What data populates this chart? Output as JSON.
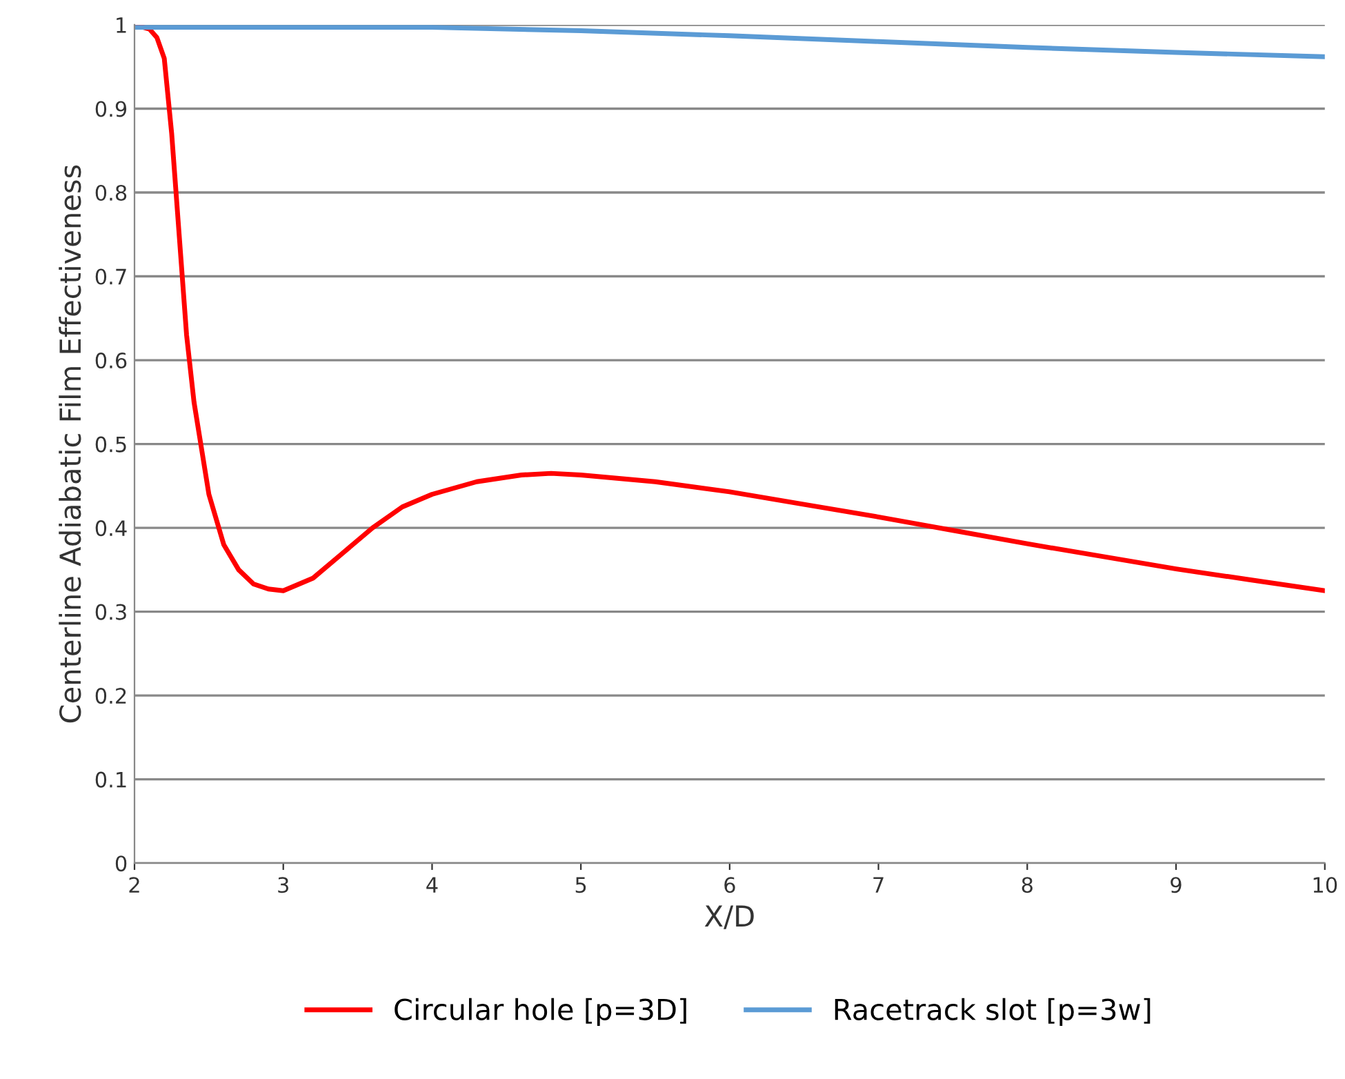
{
  "chart_data": {
    "type": "line",
    "xlabel": "X/D",
    "ylabel": "Centerline Adiabatic Film Effectiveness",
    "xlim": [
      2,
      10
    ],
    "ylim": [
      0,
      1
    ],
    "xticks": [
      2,
      3,
      4,
      5,
      6,
      7,
      8,
      9,
      10
    ],
    "yticks": [
      0,
      0.1,
      0.2,
      0.3,
      0.4,
      0.5,
      0.6,
      0.7,
      0.8,
      0.9,
      1
    ],
    "grid": "y",
    "legend": "bottom",
    "marker": "none",
    "line_style": "solid",
    "series": [
      {
        "name": "Circular hole [p=3D]",
        "color": "#ff0000",
        "x": [
          2,
          2.1,
          2.15,
          2.2,
          2.25,
          2.3,
          2.35,
          2.4,
          2.5,
          2.6,
          2.7,
          2.8,
          2.9,
          3.0,
          3.2,
          3.4,
          3.6,
          3.8,
          4.0,
          4.3,
          4.6,
          4.8,
          5.0,
          5.5,
          6,
          6.5,
          7,
          7.5,
          8,
          8.5,
          9,
          9.5,
          10
        ],
        "values": [
          1,
          0.995,
          0.985,
          0.96,
          0.87,
          0.75,
          0.63,
          0.55,
          0.44,
          0.38,
          0.35,
          0.333,
          0.327,
          0.325,
          0.34,
          0.37,
          0.4,
          0.425,
          0.44,
          0.455,
          0.463,
          0.465,
          0.463,
          0.455,
          0.443,
          0.428,
          0.413,
          0.397,
          0.381,
          0.366,
          0.351,
          0.338,
          0.325
        ]
      },
      {
        "name": "Racetrack slot [p=3w]",
        "color": "#5b9bd5",
        "x": [
          2,
          3,
          4,
          5,
          6,
          7,
          8,
          9,
          10
        ],
        "values": [
          0.997,
          0.997,
          0.997,
          0.993,
          0.987,
          0.98,
          0.973,
          0.967,
          0.962
        ]
      }
    ]
  }
}
